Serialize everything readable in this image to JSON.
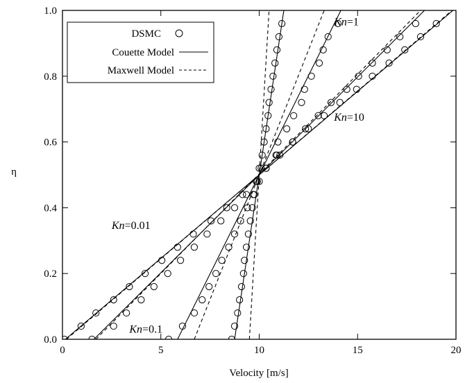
{
  "chart_data": {
    "type": "line",
    "xlabel": "Velocity [m/s]",
    "ylabel": "η",
    "xlim": [
      0,
      20
    ],
    "ylim": [
      0,
      1
    ],
    "xticks": [
      0,
      5,
      10,
      15,
      20
    ],
    "yticks": [
      0.0,
      0.2,
      0.4,
      0.6,
      0.8,
      1.0
    ],
    "xtick_labels": [
      "0",
      "5",
      "10",
      "15",
      "20"
    ],
    "ytick_labels": [
      "0.0",
      "0.2",
      "0.4",
      "0.6",
      "0.8",
      "1.0"
    ],
    "grid": false,
    "legend": {
      "placement": "top-left",
      "entries": [
        {
          "label": "DSMC",
          "style": "circle"
        },
        {
          "label": "Couette Model",
          "style": "solid"
        },
        {
          "label": "Maxwell Model",
          "style": "dashed"
        }
      ]
    },
    "annotations": [
      {
        "italic": "Kn",
        "text": "=1",
        "x": 13.8,
        "y": 0.955
      },
      {
        "italic": "Kn",
        "text": "=10",
        "x": 13.8,
        "y": 0.665
      },
      {
        "italic": "Kn",
        "text": "=0.01",
        "x": 2.5,
        "y": 0.335
      },
      {
        "italic": "Kn",
        "text": "=0.1",
        "x": 3.4,
        "y": 0.02
      }
    ],
    "series": [
      {
        "kn": "0.01",
        "couette": [
          [
            0.15,
            0.0
          ],
          [
            19.85,
            1.0
          ]
        ],
        "maxwell": [
          [
            0.2,
            0.0
          ],
          [
            19.8,
            1.0
          ]
        ],
        "dsmc": [
          [
            0.1,
            0.0
          ],
          [
            0.95,
            0.04
          ],
          [
            1.7,
            0.08
          ],
          [
            2.6,
            0.12
          ],
          [
            3.4,
            0.16
          ],
          [
            4.2,
            0.2
          ],
          [
            5.05,
            0.24
          ],
          [
            5.85,
            0.28
          ],
          [
            6.65,
            0.32
          ],
          [
            7.55,
            0.36
          ],
          [
            8.35,
            0.4
          ],
          [
            9.15,
            0.44
          ],
          [
            9.9,
            0.48
          ],
          [
            10.1,
            0.52
          ],
          [
            10.9,
            0.56
          ],
          [
            11.7,
            0.6
          ],
          [
            12.5,
            0.64
          ],
          [
            13.3,
            0.68
          ],
          [
            14.1,
            0.72
          ],
          [
            14.95,
            0.76
          ],
          [
            15.75,
            0.8
          ],
          [
            16.6,
            0.84
          ],
          [
            17.4,
            0.88
          ],
          [
            18.2,
            0.92
          ],
          [
            19.0,
            0.96
          ]
        ]
      },
      {
        "kn": "0.1",
        "couette": [
          [
            1.6,
            0.0
          ],
          [
            18.4,
            1.0
          ]
        ],
        "maxwell": [
          [
            1.7,
            0.0
          ],
          [
            18.2,
            1.0
          ]
        ],
        "dsmc": [
          [
            1.5,
            0.0
          ],
          [
            2.6,
            0.04
          ],
          [
            3.25,
            0.08
          ],
          [
            4.0,
            0.12
          ],
          [
            4.65,
            0.16
          ],
          [
            5.35,
            0.2
          ],
          [
            6.0,
            0.24
          ],
          [
            6.7,
            0.28
          ],
          [
            7.35,
            0.32
          ],
          [
            8.05,
            0.36
          ],
          [
            8.75,
            0.4
          ],
          [
            9.35,
            0.44
          ],
          [
            10.0,
            0.48
          ],
          [
            10.35,
            0.52
          ],
          [
            11.05,
            0.56
          ],
          [
            11.7,
            0.6
          ],
          [
            12.35,
            0.64
          ],
          [
            13.0,
            0.68
          ],
          [
            13.65,
            0.72
          ],
          [
            14.45,
            0.76
          ],
          [
            15.05,
            0.8
          ],
          [
            15.75,
            0.84
          ],
          [
            16.5,
            0.88
          ],
          [
            17.15,
            0.92
          ],
          [
            17.95,
            0.96
          ]
        ]
      },
      {
        "kn": "1",
        "couette": [
          [
            5.85,
            0.0
          ],
          [
            14.15,
            1.0
          ]
        ],
        "maxwell": [
          [
            6.7,
            0.0
          ],
          [
            13.3,
            1.0
          ]
        ],
        "dsmc": [
          [
            5.4,
            0.0
          ],
          [
            6.1,
            0.04
          ],
          [
            6.7,
            0.08
          ],
          [
            7.1,
            0.12
          ],
          [
            7.45,
            0.16
          ],
          [
            7.8,
            0.2
          ],
          [
            8.1,
            0.24
          ],
          [
            8.45,
            0.28
          ],
          [
            8.75,
            0.32
          ],
          [
            9.05,
            0.36
          ],
          [
            9.4,
            0.4
          ],
          [
            9.7,
            0.44
          ],
          [
            9.85,
            0.48
          ],
          [
            10.35,
            0.52
          ],
          [
            10.85,
            0.56
          ],
          [
            10.95,
            0.6
          ],
          [
            11.4,
            0.64
          ],
          [
            11.75,
            0.68
          ],
          [
            12.15,
            0.72
          ],
          [
            12.3,
            0.76
          ],
          [
            12.65,
            0.8
          ],
          [
            13.05,
            0.84
          ],
          [
            13.25,
            0.88
          ],
          [
            13.5,
            0.92
          ],
          [
            14.0,
            0.96
          ]
        ]
      },
      {
        "kn": "10",
        "couette": [
          [
            8.75,
            0.0
          ],
          [
            11.25,
            1.0
          ]
        ],
        "maxwell": [
          [
            9.5,
            0.0
          ],
          [
            10.5,
            1.0
          ]
        ],
        "dsmc": [
          [
            8.6,
            0.0
          ],
          [
            8.75,
            0.04
          ],
          [
            8.9,
            0.08
          ],
          [
            9.0,
            0.12
          ],
          [
            9.1,
            0.16
          ],
          [
            9.2,
            0.2
          ],
          [
            9.25,
            0.24
          ],
          [
            9.35,
            0.28
          ],
          [
            9.45,
            0.32
          ],
          [
            9.55,
            0.36
          ],
          [
            9.65,
            0.4
          ],
          [
            9.75,
            0.44
          ],
          [
            9.9,
            0.48
          ],
          [
            10.0,
            0.52
          ],
          [
            10.15,
            0.56
          ],
          [
            10.25,
            0.6
          ],
          [
            10.35,
            0.64
          ],
          [
            10.45,
            0.68
          ],
          [
            10.5,
            0.72
          ],
          [
            10.6,
            0.76
          ],
          [
            10.7,
            0.8
          ],
          [
            10.8,
            0.84
          ],
          [
            10.9,
            0.88
          ],
          [
            11.0,
            0.92
          ],
          [
            11.15,
            0.96
          ]
        ]
      }
    ]
  }
}
